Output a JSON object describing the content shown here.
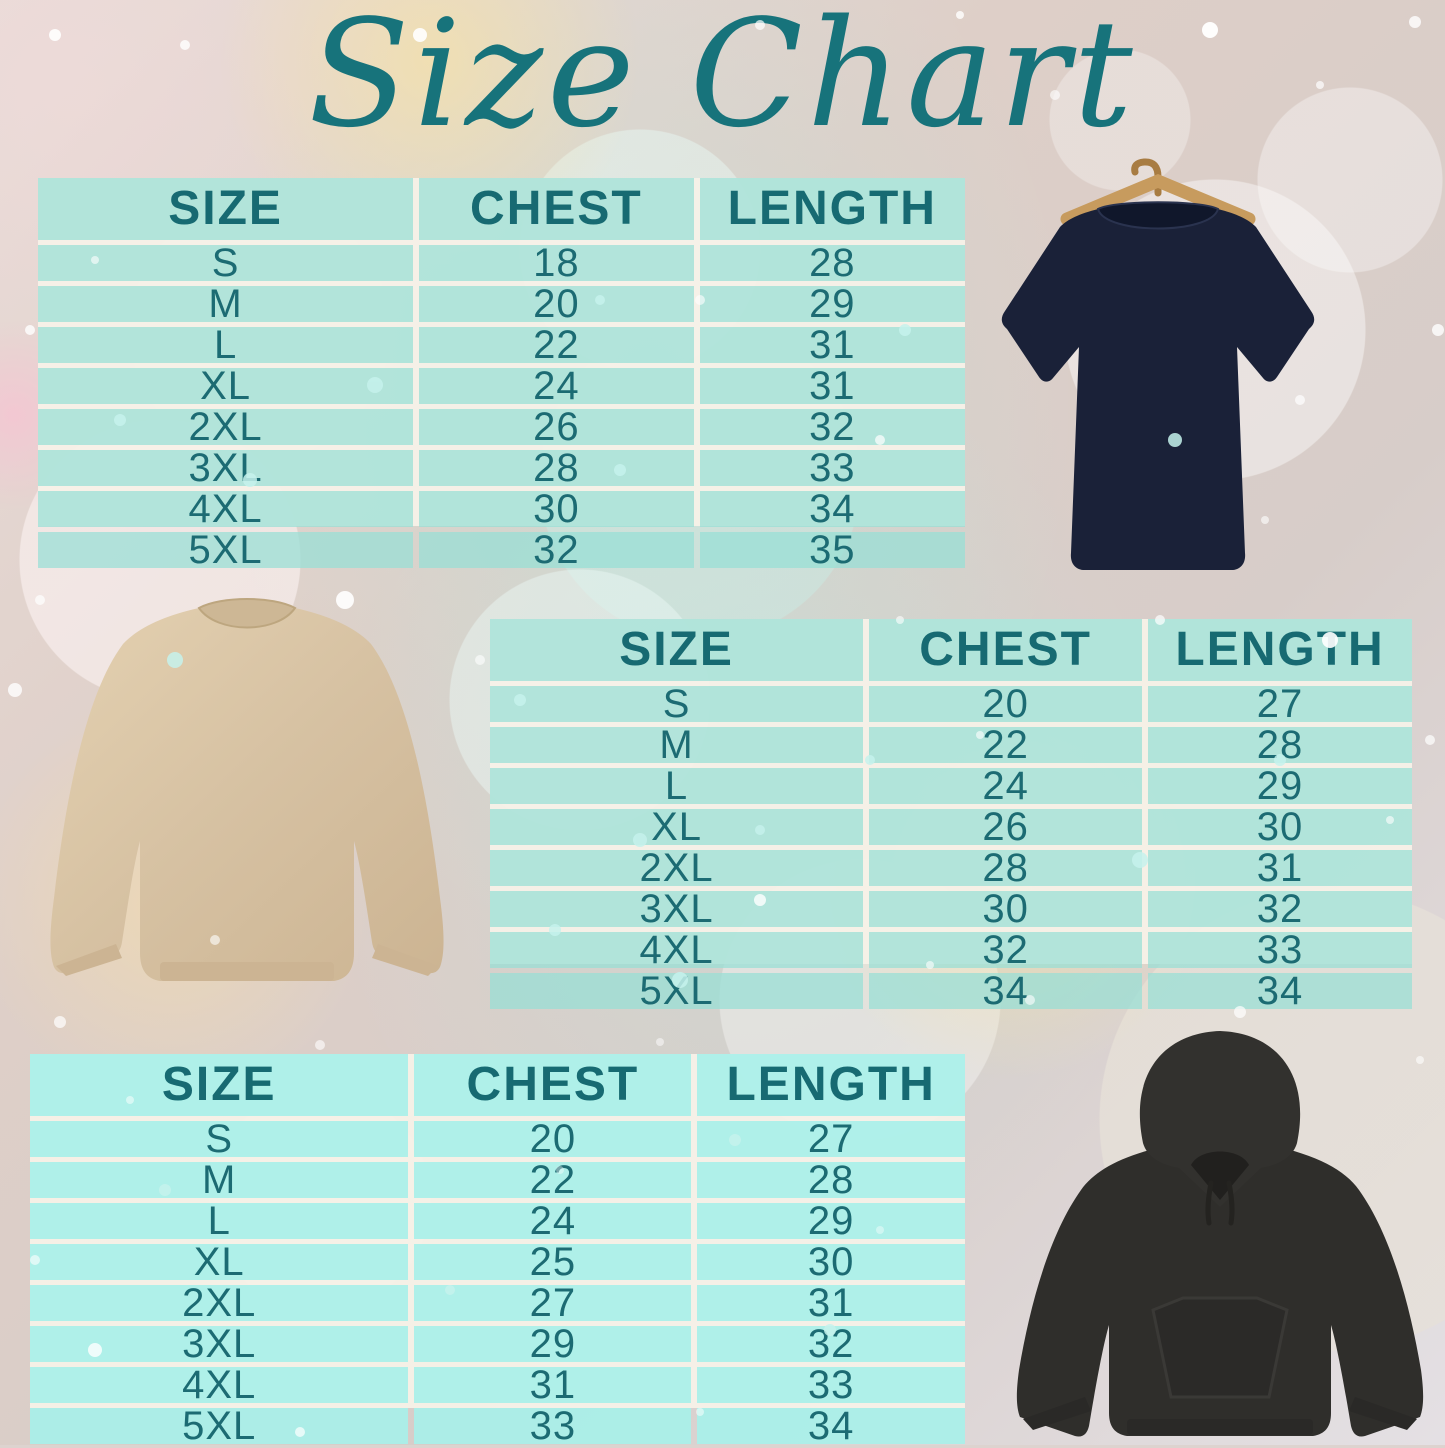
{
  "title": "Size Chart",
  "accent_color": "#17737b",
  "table_cell_color": "#97dfd5",
  "tables": [
    {
      "garment": "t-shirt",
      "headers": [
        "SIZE",
        "CHEST",
        "LENGTH"
      ],
      "rows": [
        [
          "S",
          "18",
          "28"
        ],
        [
          "M",
          "20",
          "29"
        ],
        [
          "L",
          "22",
          "31"
        ],
        [
          "XL",
          "24",
          "31"
        ],
        [
          "2XL",
          "26",
          "32"
        ],
        [
          "3XL",
          "28",
          "33"
        ],
        [
          "4XL",
          "30",
          "34"
        ],
        [
          "5XL",
          "32",
          "35"
        ]
      ]
    },
    {
      "garment": "sweatshirt",
      "headers": [
        "SIZE",
        "CHEST",
        "LENGTH"
      ],
      "rows": [
        [
          "S",
          "20",
          "27"
        ],
        [
          "M",
          "22",
          "28"
        ],
        [
          "L",
          "24",
          "29"
        ],
        [
          "XL",
          "26",
          "30"
        ],
        [
          "2XL",
          "28",
          "31"
        ],
        [
          "3XL",
          "30",
          "32"
        ],
        [
          "4XL",
          "32",
          "33"
        ],
        [
          "5XL",
          "34",
          "34"
        ]
      ]
    },
    {
      "garment": "hoodie",
      "headers": [
        "SIZE",
        "CHEST",
        "LENGTH"
      ],
      "rows": [
        [
          "S",
          "20",
          "27"
        ],
        [
          "M",
          "22",
          "28"
        ],
        [
          "L",
          "24",
          "29"
        ],
        [
          "XL",
          "25",
          "30"
        ],
        [
          "2XL",
          "27",
          "31"
        ],
        [
          "3XL",
          "29",
          "32"
        ],
        [
          "4XL",
          "31",
          "33"
        ],
        [
          "5XL",
          "33",
          "34"
        ]
      ]
    }
  ],
  "images": [
    {
      "name": "navy-tshirt-on-wooden-hanger",
      "color": "#1a2138"
    },
    {
      "name": "tan-crewneck-sweatshirt",
      "color": "#d6c1a2"
    },
    {
      "name": "charcoal-hoodie",
      "color": "#2f2e2b"
    }
  ]
}
